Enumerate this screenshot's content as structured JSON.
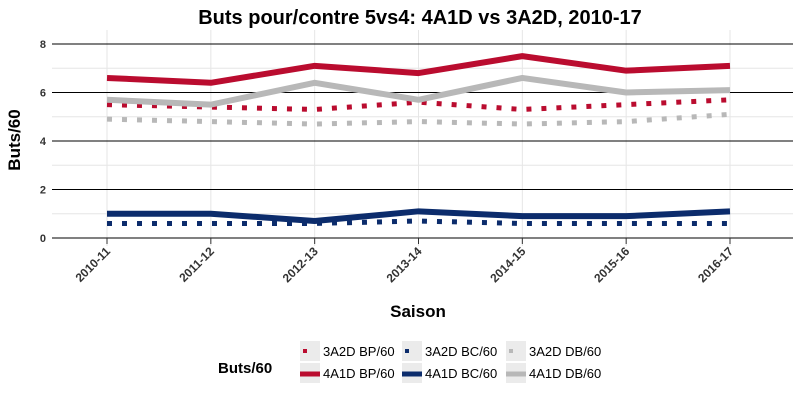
{
  "chart_data": {
    "type": "line",
    "title": "Buts pour/contre 5vs4: 4A1D vs 3A2D, 2010-17",
    "xlabel": "Saison",
    "ylabel": "Buts/60",
    "categories": [
      "2010-11",
      "2011-12",
      "2012-13",
      "2013-14",
      "2014-15",
      "2015-16",
      "2016-17"
    ],
    "ylim": [
      0,
      8
    ],
    "yticks": [
      0,
      2,
      4,
      6,
      8
    ],
    "grid": true,
    "legend_title": "Buts/60",
    "legend_position": "bottom",
    "series": [
      {
        "name": "3A2D BP/60",
        "style": "dotted",
        "color": "#BA0C2F",
        "values": [
          5.5,
          5.4,
          5.3,
          5.6,
          5.3,
          5.5,
          5.7
        ]
      },
      {
        "name": "3A2D BC/60",
        "style": "dotted",
        "color": "#0C2C6C",
        "values": [
          0.6,
          0.6,
          0.6,
          0.7,
          0.6,
          0.6,
          0.6
        ]
      },
      {
        "name": "3A2D DB/60",
        "style": "dotted",
        "color": "#B8B8B8",
        "values": [
          4.9,
          4.8,
          4.7,
          4.8,
          4.7,
          4.8,
          5.1
        ]
      },
      {
        "name": "4A1D BP/60",
        "style": "solid",
        "color": "#BA0C2F",
        "values": [
          6.6,
          6.4,
          7.1,
          6.8,
          7.5,
          6.9,
          7.1
        ]
      },
      {
        "name": "4A1D BC/60",
        "style": "solid",
        "color": "#0C2C6C",
        "values": [
          1.0,
          1.0,
          0.7,
          1.1,
          0.9,
          0.9,
          1.1
        ]
      },
      {
        "name": "4A1D DB/60",
        "style": "solid",
        "color": "#B8B8B8",
        "values": [
          5.7,
          5.5,
          6.4,
          5.7,
          6.6,
          6.0,
          6.1
        ]
      }
    ]
  }
}
